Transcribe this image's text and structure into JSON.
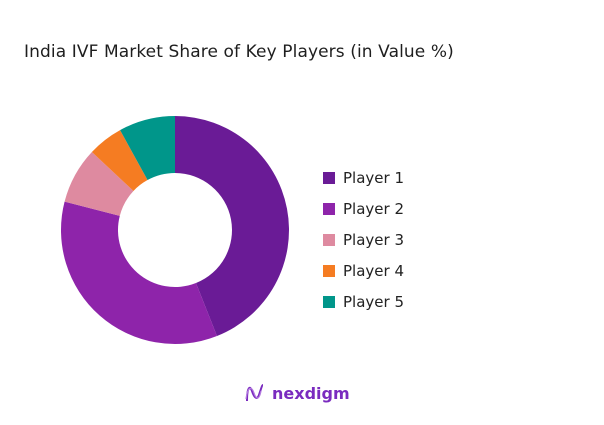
{
  "chart_data": {
    "type": "pie",
    "variant": "donut",
    "title": "India IVF Market Share of Key Players (in Value %)",
    "categories": [
      "Player 1",
      "Player 2",
      "Player 3",
      "Player 4",
      "Player 5"
    ],
    "values": [
      44,
      35,
      8,
      5,
      8
    ],
    "unit": "%",
    "colors": [
      "#6a1b96",
      "#8e24aa",
      "#de8aa0",
      "#f57c22",
      "#00968a"
    ],
    "legend_position": "right",
    "start_angle": "top, clockwise"
  },
  "logo": {
    "text": "nexdigm",
    "color": "#7a2bbf"
  }
}
